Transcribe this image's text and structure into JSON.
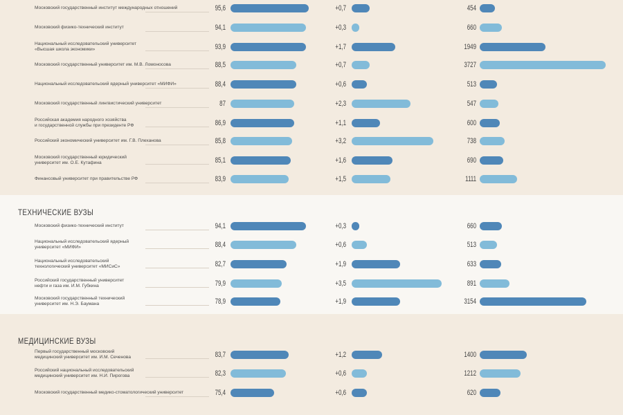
{
  "colors": {
    "dark": "#4f87b8",
    "light": "#82bbd9"
  },
  "sections": [
    {
      "title": "",
      "rows": [
        {
          "name": [
            "Московский государственный институт международных отношений"
          ],
          "score": "95,6",
          "change": "+0,7",
          "count": "454",
          "score_v": 95.6,
          "change_v": 0.7,
          "count_v": 454,
          "tone": "dark"
        },
        {
          "name": [
            "Московский физико-технический институт"
          ],
          "score": "94,1",
          "change": "+0,3",
          "count": "660",
          "score_v": 94.1,
          "change_v": 0.3,
          "count_v": 660,
          "tone": "light"
        },
        {
          "name": [
            "Национальный исследовательский университет",
            "«Высшая школа экономики»"
          ],
          "score": "93,9",
          "change": "+1,7",
          "count": "1949",
          "score_v": 93.9,
          "change_v": 1.7,
          "count_v": 1949,
          "tone": "dark"
        },
        {
          "name": [
            "Московский государственный университет им. М.В. Ломоносова"
          ],
          "score": "88,5",
          "change": "+0,7",
          "count": "3727",
          "score_v": 88.5,
          "change_v": 0.7,
          "count_v": 3727,
          "tone": "light"
        },
        {
          "name": [
            "Национальный исследовательский ядерный университет «МИФИ»"
          ],
          "score": "88,4",
          "change": "+0,6",
          "count": "513",
          "score_v": 88.4,
          "change_v": 0.6,
          "count_v": 513,
          "tone": "dark"
        },
        {
          "name": [
            "Московский государственный лингвистический университет"
          ],
          "score": "87",
          "change": "+2,3",
          "count": "547",
          "score_v": 87.0,
          "change_v": 2.3,
          "count_v": 547,
          "tone": "light"
        },
        {
          "name": [
            "Российская академия народного хозяйства",
            "и государственной службы при президенте РФ"
          ],
          "score": "86,9",
          "change": "+1,1",
          "count": "600",
          "score_v": 86.9,
          "change_v": 1.1,
          "count_v": 600,
          "tone": "dark"
        },
        {
          "name": [
            "Российский экономический университет им. Г.В. Плеханова"
          ],
          "score": "85,8",
          "change": "+3,2",
          "count": "738",
          "score_v": 85.8,
          "change_v": 3.2,
          "count_v": 738,
          "tone": "light"
        },
        {
          "name": [
            "Московский государственный юридический",
            "университет им. О.Е. Кутафина"
          ],
          "score": "85,1",
          "change": "+1,6",
          "count": "690",
          "score_v": 85.1,
          "change_v": 1.6,
          "count_v": 690,
          "tone": "dark"
        },
        {
          "name": [
            "Финансовый университет при правительстве РФ"
          ],
          "score": "83,9",
          "change": "+1,5",
          "count": "1111",
          "score_v": 83.9,
          "change_v": 1.5,
          "count_v": 1111,
          "tone": "light"
        }
      ]
    },
    {
      "title": "ТЕХНИЧЕСКИЕ ВУЗЫ",
      "rows": [
        {
          "name": [
            "Московский физико-технический институт"
          ],
          "score": "94,1",
          "change": "+0,3",
          "count": "660",
          "score_v": 94.1,
          "change_v": 0.3,
          "count_v": 660,
          "tone": "dark"
        },
        {
          "name": [
            "Национальный исследовательский ядерный",
            "университет «МИФИ»"
          ],
          "score": "88,4",
          "change": "+0,6",
          "count": "513",
          "score_v": 88.4,
          "change_v": 0.6,
          "count_v": 513,
          "tone": "light"
        },
        {
          "name": [
            "Национальный исследовательский",
            "технологический университет «МИСиС»"
          ],
          "score": "82,7",
          "change": "+1,9",
          "count": "633",
          "score_v": 82.7,
          "change_v": 1.9,
          "count_v": 633,
          "tone": "dark"
        },
        {
          "name": [
            "Российский государственный университет",
            "нефти и газа им. И.М. Губкина"
          ],
          "score": "79,9",
          "change": "+3,5",
          "count": "891",
          "score_v": 79.9,
          "change_v": 3.5,
          "count_v": 891,
          "tone": "light"
        },
        {
          "name": [
            "Московский государственный технический",
            "университет им. Н.Э. Баумана"
          ],
          "score": "78,9",
          "change": "+1,9",
          "count": "3154",
          "score_v": 78.9,
          "change_v": 1.9,
          "count_v": 3154,
          "tone": "dark"
        }
      ]
    },
    {
      "title": "МЕДИЦИНСКИЕ ВУЗЫ",
      "rows": [
        {
          "name": [
            "Первый государственный московский",
            "медицинский университет им. И.М. Сеченова"
          ],
          "score": "83,7",
          "change": "+1,2",
          "count": "1400",
          "score_v": 83.7,
          "change_v": 1.2,
          "count_v": 1400,
          "tone": "dark"
        },
        {
          "name": [
            "Российский национальный исследовательский",
            "медицинский университет им. Н.И. Пирогова"
          ],
          "score": "82,3",
          "change": "+0,6",
          "count": "1212",
          "score_v": 82.3,
          "change_v": 0.6,
          "count_v": 1212,
          "tone": "light"
        },
        {
          "name": [
            "Московский государственный медико-стоматологический университет"
          ],
          "score": "75,4",
          "change": "+0,6",
          "count": "620",
          "score_v": 75.4,
          "change_v": 0.6,
          "count_v": 620,
          "tone": "dark"
        }
      ]
    }
  ],
  "chart_data": {
    "type": "bar",
    "series": [
      {
        "values": [
          95.6,
          94.1,
          93.9,
          88.5,
          88.4,
          87.0,
          86.9,
          85.8,
          85.1,
          83.9,
          94.1,
          88.4,
          82.7,
          79.9,
          78.9,
          83.7,
          82.3,
          75.4
        ]
      },
      {
        "values": [
          0.7,
          0.3,
          1.7,
          0.7,
          0.6,
          2.3,
          1.1,
          3.2,
          1.6,
          1.5,
          0.3,
          0.6,
          1.9,
          3.5,
          1.9,
          1.2,
          0.6,
          0.6
        ]
      },
      {
        "values": [
          454,
          660,
          1949,
          3727,
          513,
          547,
          600,
          738,
          690,
          1111,
          660,
          513,
          633,
          891,
          3154,
          1400,
          1212,
          620
        ]
      }
    ]
  }
}
